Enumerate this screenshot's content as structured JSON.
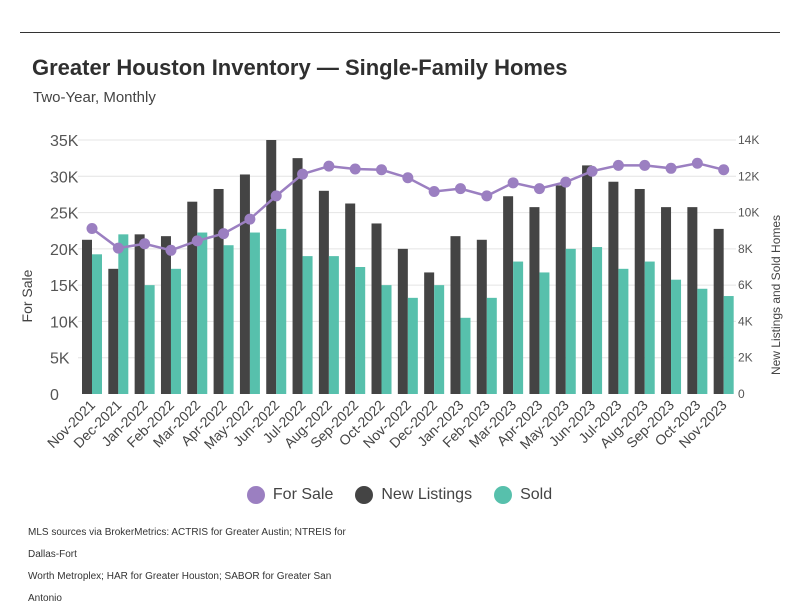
{
  "header": {
    "title": "Greater Houston Inventory — Single-Family Homes",
    "subtitle": "Two-Year, Monthly"
  },
  "chart_data": {
    "type": "bar",
    "title": "Greater Houston Inventory — Single-Family Homes",
    "subtitle": "Two-Year, Monthly",
    "categories": [
      "Nov-2021",
      "Dec-2021",
      "Jan-2022",
      "Feb-2022",
      "Mar-2022",
      "Apr-2022",
      "May-2022",
      "Jun-2022",
      "Jul-2022",
      "Aug-2022",
      "Sep-2022",
      "Oct-2022",
      "Nov-2022",
      "Dec-2022",
      "Jan-2023",
      "Feb-2023",
      "Mar-2023",
      "Apr-2023",
      "May-2023",
      "Jun-2023",
      "Jul-2023",
      "Aug-2023",
      "Sep-2023",
      "Oct-2023",
      "Nov-2023"
    ],
    "y_left": {
      "label": "For Sale",
      "range": [
        0,
        35000
      ],
      "ticks": [
        0,
        5000,
        10000,
        15000,
        20000,
        25000,
        30000,
        35000
      ],
      "tick_labels": [
        "0",
        "5K",
        "10K",
        "15K",
        "20K",
        "25K",
        "30K",
        "35K"
      ]
    },
    "y_right": {
      "label": "New Listings and Sold Homes",
      "range": [
        0,
        14000
      ],
      "ticks": [
        0,
        2000,
        4000,
        6000,
        8000,
        10000,
        12000,
        14000
      ],
      "tick_labels": [
        "0",
        "2K",
        "4K",
        "6K",
        "8K",
        "10K",
        "12K",
        "14K"
      ]
    },
    "grid": true,
    "legend_position": "bottom",
    "series": [
      {
        "name": "For Sale",
        "type": "line",
        "axis": "left",
        "color": "#9b7fc1",
        "values": [
          22800,
          20100,
          20700,
          19800,
          21100,
          22100,
          24100,
          27300,
          30300,
          31400,
          31000,
          30900,
          29800,
          27900,
          28300,
          27300,
          29100,
          28300,
          29200,
          30700,
          31500,
          31500,
          31100,
          31800,
          30900
        ]
      },
      {
        "name": "New Listings",
        "type": "bar",
        "axis": "right",
        "color": "#444444",
        "values": [
          8500,
          6900,
          8800,
          8700,
          10600,
          11300,
          12100,
          14000,
          13000,
          11200,
          10500,
          9400,
          8000,
          6700,
          8700,
          8500,
          10900,
          10300,
          11500,
          12600,
          11700,
          11300,
          10300,
          10300,
          9100
        ]
      },
      {
        "name": "Sold",
        "type": "bar",
        "axis": "right",
        "color": "#57c0ac",
        "values": [
          7700,
          8800,
          6000,
          6900,
          8900,
          8200,
          8900,
          9100,
          7600,
          7600,
          7000,
          6000,
          5300,
          6000,
          4200,
          5300,
          7300,
          6700,
          8000,
          8100,
          6900,
          7300,
          6300,
          5800,
          5400
        ]
      }
    ]
  },
  "legend": {
    "items": [
      {
        "label": "For Sale",
        "color": "#9b7fc1"
      },
      {
        "label": "New Listings",
        "color": "#444444"
      },
      {
        "label": "Sold",
        "color": "#57c0ac"
      }
    ]
  },
  "source": {
    "line1": "MLS sources via BrokerMetrics: ACTRIS for Greater Austin; NTREIS for Dallas-Fort",
    "line2": "Worth Metroplex; HAR for Greater Houston; SABOR for Greater San Antonio"
  }
}
